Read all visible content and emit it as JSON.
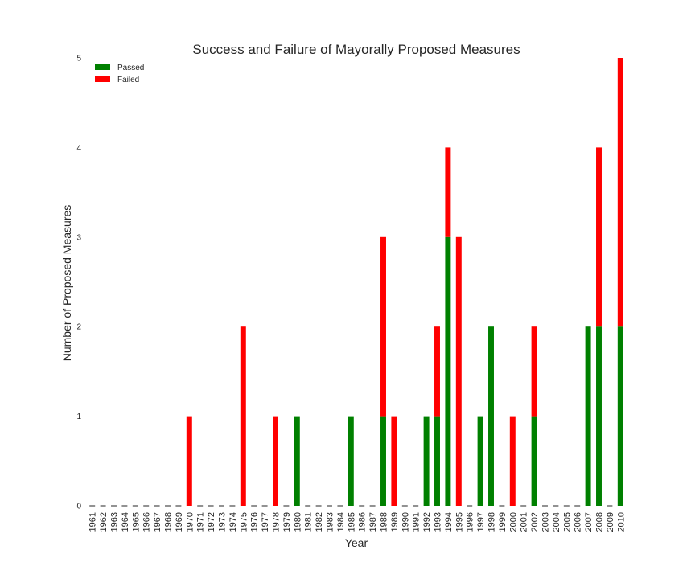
{
  "chart_data": {
    "type": "bar",
    "stacked": true,
    "title": "Success and Failure of Mayorally Proposed Measures",
    "xlabel": "Year",
    "ylabel": "Number of Proposed Measures",
    "ylim": [
      0,
      5
    ],
    "yticks": [
      "0",
      "1",
      "2",
      "3",
      "4",
      "5"
    ],
    "legend_position": "top-left",
    "grid": false,
    "categories": [
      "1961",
      "1962",
      "1963",
      "1964",
      "1965",
      "1966",
      "1967",
      "1968",
      "1969",
      "1970",
      "1971",
      "1972",
      "1973",
      "1974",
      "1975",
      "1976",
      "1977",
      "1978",
      "1979",
      "1980",
      "1981",
      "1982",
      "1983",
      "1984",
      "1985",
      "1986",
      "1987",
      "1988",
      "1989",
      "1990",
      "1991",
      "1992",
      "1993",
      "1994",
      "1995",
      "1996",
      "1997",
      "1998",
      "1999",
      "2000",
      "2001",
      "2002",
      "2003",
      "2004",
      "2005",
      "2006",
      "2007",
      "2008",
      "2009",
      "2010"
    ],
    "series": [
      {
        "name": "Passed",
        "color": "#008000",
        "values": [
          0,
          0,
          0,
          0,
          0,
          0,
          0,
          0,
          0,
          0,
          0,
          0,
          0,
          0,
          0,
          0,
          0,
          0,
          0,
          1,
          0,
          0,
          0,
          0,
          1,
          0,
          0,
          1,
          0,
          0,
          0,
          1,
          1,
          3,
          0,
          0,
          1,
          2,
          0,
          0,
          0,
          1,
          0,
          0,
          0,
          0,
          2,
          2,
          0,
          2
        ]
      },
      {
        "name": "Failed",
        "color": "#ff0000",
        "values": [
          0,
          0,
          0,
          0,
          0,
          0,
          0,
          0,
          0,
          1,
          0,
          0,
          0,
          0,
          2,
          0,
          0,
          1,
          0,
          0,
          0,
          0,
          0,
          0,
          0,
          0,
          0,
          2,
          1,
          0,
          0,
          0,
          1,
          1,
          3,
          0,
          0,
          0,
          0,
          1,
          0,
          1,
          0,
          0,
          0,
          0,
          0,
          2,
          0,
          3
        ]
      }
    ]
  }
}
